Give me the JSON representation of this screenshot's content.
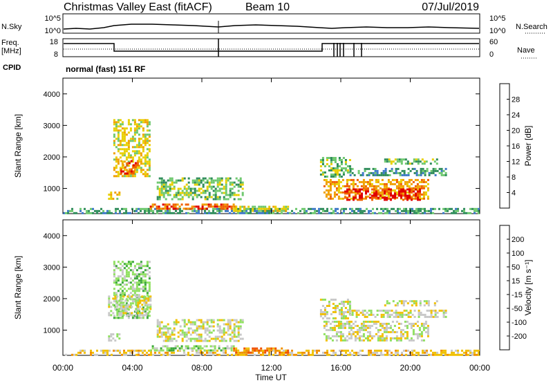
{
  "header": {
    "title": "Christmas Valley East (fitACF)",
    "beam": "Beam 10",
    "date": "07/Jul/2019"
  },
  "status_panel": {
    "nsky_label": "N.Sky",
    "nsearch_label": "N.Search",
    "noise_ticks": [
      "10^5",
      "10^0"
    ],
    "freq_label_line1": "Freq.",
    "freq_label_line2": "[MHz]",
    "freq_ticks": [
      "18",
      "8"
    ],
    "nave_label": "Nave",
    "nave_ticks": [
      "60",
      "0"
    ],
    "cpid_label": "CPID",
    "cpid_text": "normal (fast) 151 RF"
  },
  "chart_data": [
    {
      "type": "heatmap",
      "title": "",
      "xlabel": "Time UT",
      "ylabel": "Slant Range [km]",
      "x_ticks": [
        "00:00",
        "04:00",
        "08:00",
        "12:00",
        "16:00",
        "20:00",
        "00:00"
      ],
      "y_ticks": [
        "1000",
        "2000",
        "3000",
        "4000"
      ],
      "ylim": [
        200,
        4500
      ],
      "colorbar_label": "Power [dB]",
      "colorbar_ticks": [
        "4",
        "8",
        "12",
        "16",
        "20",
        "24",
        "28"
      ],
      "colorbar_colors": [
        "#2a3cf0",
        "#3c78c8",
        "#2e8c5a",
        "#6ec86e",
        "#e8d000",
        "#f0a000",
        "#f06000",
        "#e00000"
      ],
      "regions": [
        {
          "t0": 2.9,
          "t1": 5.0,
          "r0": 1400,
          "r1": 3200,
          "level": 4
        },
        {
          "t0": 3.3,
          "t1": 4.3,
          "r0": 1500,
          "r1": 1900,
          "level": 6
        },
        {
          "t0": 5.4,
          "t1": 10.4,
          "r0": 650,
          "r1": 1350,
          "level": 3
        },
        {
          "t0": 2.6,
          "t1": 3.2,
          "r0": 650,
          "r1": 900,
          "level": 4
        },
        {
          "t0": 0.0,
          "t1": 24.0,
          "r0": 220,
          "r1": 380,
          "level": 2
        },
        {
          "t0": 5.0,
          "t1": 10.0,
          "r0": 350,
          "r1": 520,
          "level": 6
        },
        {
          "t0": 9.8,
          "t1": 13.0,
          "r0": 300,
          "r1": 450,
          "level": 4
        },
        {
          "t0": 15.0,
          "t1": 21.0,
          "r0": 700,
          "r1": 1300,
          "level": 5
        },
        {
          "t0": 16.2,
          "t1": 20.5,
          "r0": 650,
          "r1": 1000,
          "level": 7
        },
        {
          "t0": 14.8,
          "t1": 16.5,
          "r0": 1400,
          "r1": 2000,
          "level": 3
        },
        {
          "t0": 16.5,
          "t1": 22.0,
          "r0": 1450,
          "r1": 1650,
          "level": 2
        },
        {
          "t0": 18.5,
          "t1": 21.5,
          "r0": 1800,
          "r1": 1950,
          "level": 3
        }
      ]
    },
    {
      "type": "heatmap",
      "title": "",
      "xlabel": "Time UT",
      "ylabel": "Slant Range [km]",
      "x_ticks": [
        "00:00",
        "04:00",
        "08:00",
        "12:00",
        "16:00",
        "20:00",
        "00:00"
      ],
      "y_ticks": [
        "1000",
        "2000",
        "3000",
        "4000"
      ],
      "ylim": [
        200,
        4500
      ],
      "colorbar_label": "Velocity [m s⁻¹]",
      "colorbar_ticks": [
        "200",
        "100",
        "50",
        "15",
        "-15",
        "-50",
        "-100",
        "-200"
      ],
      "colorbar_colors": [
        "#2a3cc8",
        "#2e7d6e",
        "#3ca83c",
        "#90e060",
        "#c8c8c8",
        "#f0c000",
        "#f09000",
        "#f05000",
        "#e00000"
      ],
      "regions": [
        {
          "t0": 2.9,
          "t1": 5.0,
          "r0": 1400,
          "r1": 3200,
          "level": 3
        },
        {
          "t0": 2.6,
          "t1": 5.0,
          "r0": 1500,
          "r1": 2100,
          "level": 4
        },
        {
          "t0": 5.4,
          "t1": 10.4,
          "r0": 650,
          "r1": 1350,
          "level": 4
        },
        {
          "t0": 2.6,
          "t1": 3.2,
          "r0": 650,
          "r1": 900,
          "level": 4
        },
        {
          "t0": 0.0,
          "t1": 24.0,
          "r0": 220,
          "r1": 380,
          "level": 5
        },
        {
          "t0": 5.0,
          "t1": 9.8,
          "r0": 350,
          "r1": 520,
          "level": 3
        },
        {
          "t0": 9.8,
          "t1": 13.0,
          "r0": 300,
          "r1": 450,
          "level": 6
        },
        {
          "t0": 15.0,
          "t1": 21.0,
          "r0": 700,
          "r1": 1300,
          "level": 4
        },
        {
          "t0": 14.8,
          "t1": 16.5,
          "r0": 1400,
          "r1": 2000,
          "level": 4
        },
        {
          "t0": 16.5,
          "t1": 22.0,
          "r0": 1450,
          "r1": 1650,
          "level": 4
        },
        {
          "t0": 18.5,
          "t1": 21.5,
          "r0": 1800,
          "r1": 1950,
          "level": 4
        }
      ]
    }
  ]
}
